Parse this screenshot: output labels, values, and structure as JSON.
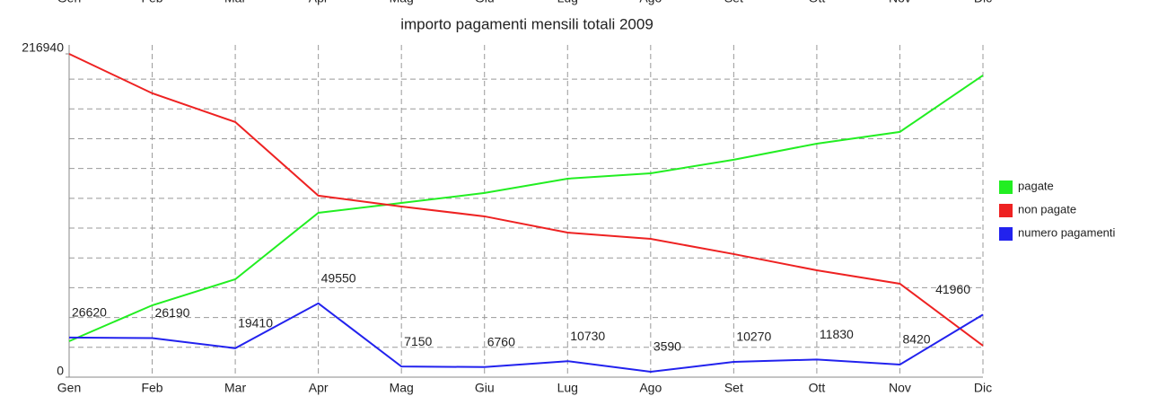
{
  "chart_data": {
    "type": "line",
    "title": "importo pagamenti mensili totali 2009",
    "categories": [
      "Gen",
      "Feb",
      "Mar",
      "Apr",
      "Mag",
      "Giu",
      "Lug",
      "Ago",
      "Set",
      "Ott",
      "Nov",
      "Dic"
    ],
    "series": [
      {
        "name": "pagate",
        "color": "#22ee22",
        "values": [
          24100,
          48200,
          65700,
          110300,
          116900,
          123600,
          133200,
          136800,
          145900,
          156700,
          164600,
          202500
        ]
      },
      {
        "name": "non pagate",
        "color": "#ee2222",
        "values": [
          216940,
          190500,
          171200,
          121800,
          114500,
          107900,
          97000,
          92800,
          82600,
          71700,
          62700,
          21100
        ]
      },
      {
        "name": "numero pagamenti",
        "color": "#2222ee",
        "values": [
          26620,
          26190,
          19410,
          49550,
          7150,
          6760,
          10730,
          3590,
          10270,
          11830,
          8420,
          41960
        ],
        "data_labels": true
      }
    ],
    "ylim": [
      0,
      216940
    ],
    "yticks": [
      0,
      216940
    ],
    "ygrid": [
      20000,
      40000,
      60000,
      80000,
      100000,
      120000,
      140000,
      160000,
      180000,
      200000
    ],
    "grid": true,
    "legend": "right"
  }
}
